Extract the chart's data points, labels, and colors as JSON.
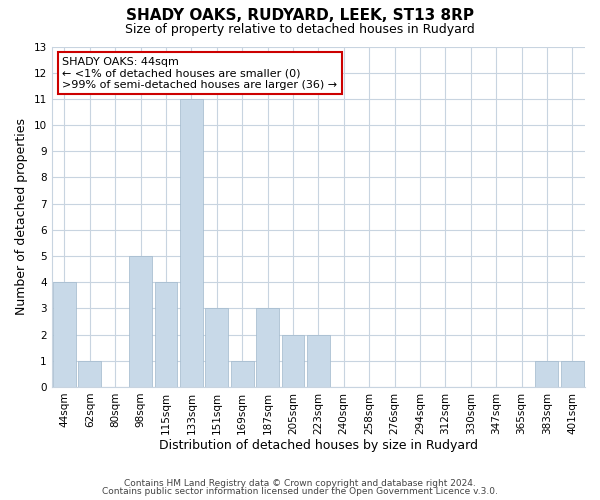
{
  "title": "SHADY OAKS, RUDYARD, LEEK, ST13 8RP",
  "subtitle": "Size of property relative to detached houses in Rudyard",
  "xlabel": "Distribution of detached houses by size in Rudyard",
  "ylabel": "Number of detached properties",
  "bar_labels": [
    "44sqm",
    "62sqm",
    "80sqm",
    "98sqm",
    "115sqm",
    "133sqm",
    "151sqm",
    "169sqm",
    "187sqm",
    "205sqm",
    "223sqm",
    "240sqm",
    "258sqm",
    "276sqm",
    "294sqm",
    "312sqm",
    "330sqm",
    "347sqm",
    "365sqm",
    "383sqm",
    "401sqm"
  ],
  "bar_values": [
    4,
    1,
    0,
    5,
    4,
    11,
    3,
    1,
    3,
    2,
    2,
    0,
    0,
    0,
    0,
    0,
    0,
    0,
    0,
    1,
    1
  ],
  "bar_color": "#c8d9e8",
  "bar_edge_color": "#a0b8cc",
  "ylim": [
    0,
    13
  ],
  "yticks": [
    0,
    1,
    2,
    3,
    4,
    5,
    6,
    7,
    8,
    9,
    10,
    11,
    12,
    13
  ],
  "annotation_title": "SHADY OAKS: 44sqm",
  "annotation_line1": "← <1% of detached houses are smaller (0)",
  "annotation_line2": ">99% of semi-detached houses are larger (36) →",
  "annotation_box_color": "#cc0000",
  "footer_line1": "Contains HM Land Registry data © Crown copyright and database right 2024.",
  "footer_line2": "Contains public sector information licensed under the Open Government Licence v.3.0.",
  "background_color": "#ffffff",
  "grid_color": "#c8d4e0",
  "title_fontsize": 11,
  "subtitle_fontsize": 9,
  "xlabel_fontsize": 9,
  "ylabel_fontsize": 9,
  "tick_fontsize": 7.5,
  "footer_fontsize": 6.5,
  "annotation_fontsize": 8
}
